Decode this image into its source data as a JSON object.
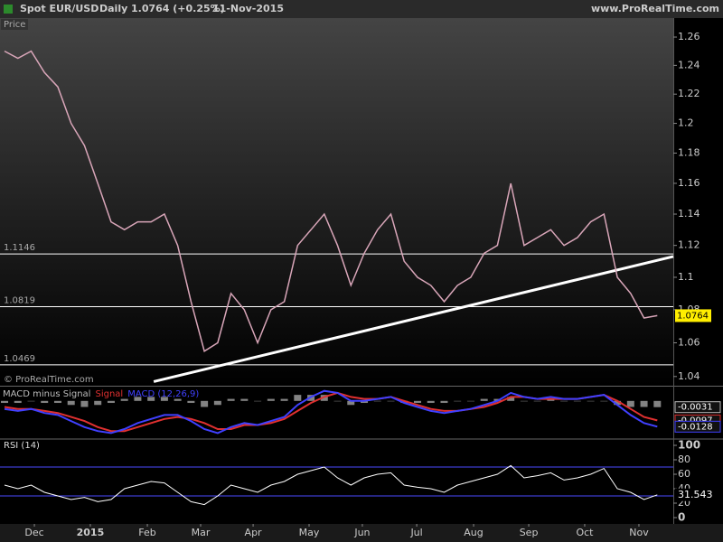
{
  "header": {
    "symbol": "Spot EUR/USD",
    "period": "Daily",
    "quote": "1.0764 (+0.25%)",
    "date": "11-Nov-2015",
    "site": "www.ProRealTime.com"
  },
  "x_axis": {
    "x": [
      0,
      1,
      2,
      3,
      4,
      5,
      6,
      7,
      8,
      9,
      10,
      11,
      12,
      13,
      14,
      15,
      16,
      17,
      18,
      19,
      20,
      21,
      22,
      23,
      24,
      25,
      26,
      27,
      28,
      29,
      30,
      31,
      32,
      33,
      34,
      35,
      36,
      37,
      38,
      39,
      40,
      41,
      42,
      43,
      44,
      45,
      46,
      47,
      48,
      49
    ],
    "xlim": [
      -0.34,
      50.2
    ],
    "xticks": [
      {
        "value": 2.24,
        "label": "Dec"
      },
      {
        "value": 6.44,
        "label": "2015"
      },
      {
        "value": 10.72,
        "label": "Feb"
      },
      {
        "value": 14.72,
        "label": "Mar"
      },
      {
        "value": 18.66,
        "label": "Apr"
      },
      {
        "value": 22.86,
        "label": "May"
      },
      {
        "value": 26.86,
        "label": "Jun"
      },
      {
        "value": 30.94,
        "label": "Jul"
      },
      {
        "value": 35.21,
        "label": "Aug"
      },
      {
        "value": 39.35,
        "label": "Sep"
      },
      {
        "value": 43.55,
        "label": "Oct"
      },
      {
        "value": 47.62,
        "label": "Nov"
      }
    ]
  },
  "chart_data": [
    {
      "type": "line",
      "title": "Price",
      "watermark": "© ProRealTime.com",
      "log_scale": true,
      "ylim": [
        1.0346,
        1.2736
      ],
      "yticks": [
        1.04,
        1.06,
        1.08,
        1.1,
        1.12,
        1.14,
        1.16,
        1.18,
        1.2,
        1.22,
        1.24,
        1.26
      ],
      "series": [
        {
          "name": "EUR/USD",
          "color": "#d9a6b9",
          "values": [
            1.25,
            1.245,
            1.25,
            1.235,
            1.225,
            1.2,
            1.185,
            1.16,
            1.135,
            1.13,
            1.135,
            1.135,
            1.14,
            1.12,
            1.085,
            1.055,
            1.06,
            1.09,
            1.08,
            1.06,
            1.08,
            1.085,
            1.12,
            1.13,
            1.14,
            1.12,
            1.095,
            1.115,
            1.13,
            1.14,
            1.11,
            1.1,
            1.095,
            1.085,
            1.095,
            1.1,
            1.115,
            1.12,
            1.16,
            1.12,
            1.125,
            1.13,
            1.12,
            1.125,
            1.135,
            1.14,
            1.1,
            1.09,
            1.075,
            1.0764
          ]
        }
      ],
      "levels": [
        1.1146,
        1.0819,
        1.0469
      ],
      "trendline": {
        "x": [
          11.2,
          50.2
        ],
        "values": [
          1.037,
          1.113
        ]
      }
    },
    {
      "type": "macd",
      "ylim": [
        -0.0185,
        0.0071
      ],
      "series": [
        {
          "name": "MACD minus Signal",
          "color": "#bbbbbb",
          "values": [
            -0.001,
            -0.001,
            0,
            -0.001,
            -0.001,
            -0.002,
            -0.003,
            -0.002,
            -0.001,
            0.001,
            0.002,
            0.002,
            0.002,
            0.001,
            -0.001,
            -0.003,
            -0.002,
            0.001,
            0.001,
            0,
            0.001,
            0.001,
            0.003,
            0.003,
            0.003,
            0,
            -0.002,
            -0.001,
            0,
            0,
            -0.001,
            -0.001,
            -0.001,
            -0.001,
            0,
            0,
            0.001,
            0.001,
            0.002,
            0,
            0,
            0.001,
            0,
            0,
            0,
            0,
            -0.002,
            -0.003,
            -0.003,
            -0.0031
          ]
        },
        {
          "name": "Signal",
          "color": "#e03030",
          "values": [
            -0.003,
            -0.004,
            -0.004,
            -0.005,
            -0.006,
            -0.008,
            -0.01,
            -0.013,
            -0.015,
            -0.015,
            -0.013,
            -0.011,
            -0.009,
            -0.008,
            -0.009,
            -0.011,
            -0.014,
            -0.014,
            -0.012,
            -0.012,
            -0.011,
            -0.009,
            -0.005,
            -0.001,
            0.002,
            0.004,
            0.002,
            0.001,
            0.001,
            0.002,
            0,
            -0.002,
            -0.004,
            -0.005,
            -0.005,
            -0.004,
            -0.003,
            -0.001,
            0.002,
            0.002,
            0.001,
            0.001,
            0.001,
            0.001,
            0.002,
            0.003,
            0,
            -0.004,
            -0.008,
            -0.0097
          ]
        },
        {
          "name": "MACD (12,26,9)",
          "color": "#4040ff",
          "values": [
            -0.004,
            -0.005,
            -0.004,
            -0.006,
            -0.007,
            -0.01,
            -0.013,
            -0.015,
            -0.016,
            -0.014,
            -0.011,
            -0.009,
            -0.007,
            -0.007,
            -0.01,
            -0.014,
            -0.016,
            -0.013,
            -0.011,
            -0.012,
            -0.01,
            -0.008,
            -0.002,
            0.002,
            0.005,
            0.004,
            0,
            0,
            0.001,
            0.002,
            -0.001,
            -0.003,
            -0.005,
            -0.006,
            -0.005,
            -0.004,
            -0.002,
            0,
            0.004,
            0.002,
            0.001,
            0.002,
            0.001,
            0.001,
            0.002,
            0.003,
            -0.002,
            -0.007,
            -0.011,
            -0.0128
          ]
        }
      ]
    },
    {
      "type": "rsi",
      "title": "RSI (14)",
      "ylim": [
        0,
        100
      ],
      "yticks": [
        0,
        20,
        40,
        60,
        80,
        100
      ],
      "levels": [
        70,
        30
      ],
      "series": [
        {
          "name": "RSI",
          "color": "#ffffff",
          "values": [
            45,
            40,
            45,
            35,
            30,
            25,
            28,
            22,
            25,
            40,
            45,
            50,
            48,
            35,
            22,
            18,
            30,
            45,
            40,
            35,
            45,
            50,
            60,
            65,
            70,
            55,
            45,
            55,
            60,
            62,
            45,
            42,
            40,
            35,
            45,
            50,
            55,
            60,
            72,
            55,
            58,
            62,
            52,
            55,
            60,
            68,
            40,
            35,
            25,
            31.543
          ]
        }
      ]
    }
  ]
}
